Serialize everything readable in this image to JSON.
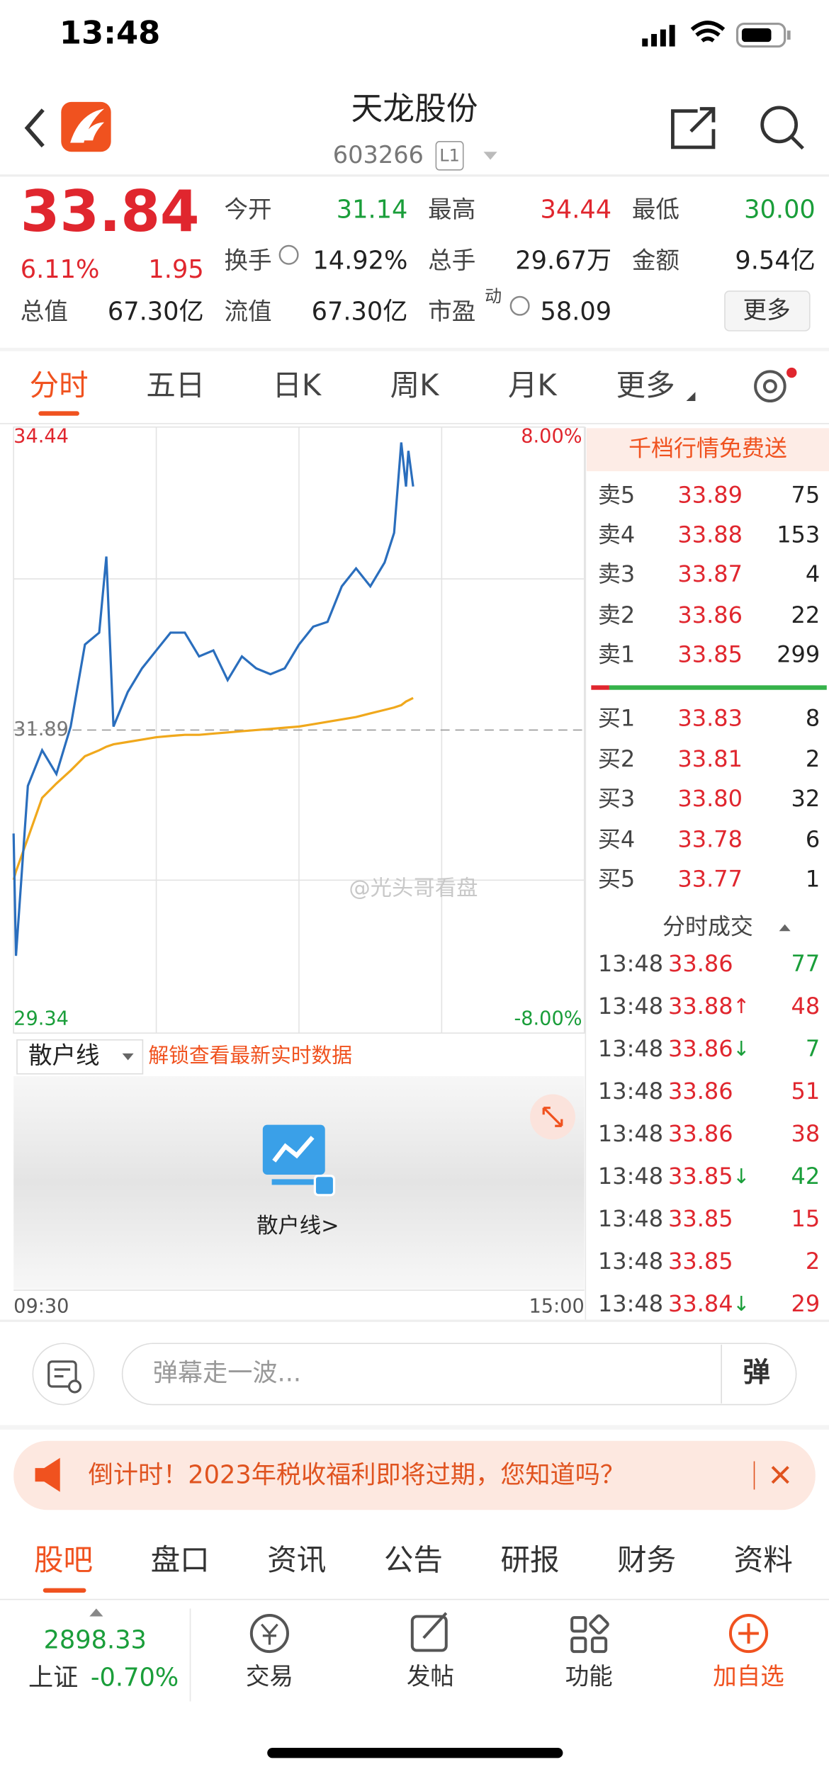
{
  "status": {
    "time": "13:48"
  },
  "header": {
    "title": "天龙股份",
    "code": "603266",
    "level": "L1"
  },
  "quote": {
    "price": "33.84",
    "change_pct": "6.11%",
    "change": "1.95",
    "stats": [
      {
        "label": "今开",
        "value": "31.14",
        "color": "#1a9e3a"
      },
      {
        "label": "最高",
        "value": "34.44",
        "color": "#e0262e"
      },
      {
        "label": "最低",
        "value": "30.00",
        "color": "#1a9e3a"
      },
      {
        "label": "换手",
        "value": "14.92%",
        "color": "#222222"
      },
      {
        "label": "总手",
        "value": "29.67万",
        "color": "#222222"
      },
      {
        "label": "金额",
        "value": "9.54亿",
        "color": "#222222"
      },
      {
        "label": "总值",
        "value": "67.30亿",
        "color": "#222222"
      },
      {
        "label": "流值",
        "value": "67.30亿",
        "color": "#222222"
      },
      {
        "label": "市盈",
        "sup": "动",
        "value": "58.09",
        "color": "#222222"
      }
    ],
    "more": "更多"
  },
  "tabs": [
    "分时",
    "五日",
    "日K",
    "周K",
    "月K",
    "更多"
  ],
  "chart_data": {
    "type": "line",
    "x": [
      0,
      1,
      6,
      12,
      18,
      24,
      30,
      36,
      39,
      42,
      48,
      54,
      60,
      66,
      72,
      78,
      84,
      90,
      96,
      102,
      108,
      114,
      120,
      126,
      132,
      138,
      144,
      150,
      156,
      160,
      163,
      165,
      166,
      168
    ],
    "series": [
      {
        "color": "#2a6ebd",
        "values": [
          31.02,
          29.99,
          31.42,
          31.72,
          31.52,
          31.92,
          32.61,
          32.71,
          33.35,
          31.92,
          32.21,
          32.41,
          32.56,
          32.71,
          32.71,
          32.51,
          32.56,
          32.31,
          32.51,
          32.41,
          32.36,
          32.41,
          32.61,
          32.76,
          32.8,
          33.1,
          33.25,
          33.1,
          33.3,
          33.55,
          34.31,
          33.94,
          34.24,
          33.94
        ]
      },
      {
        "color": "#f0a81c",
        "values": [
          30.63,
          30.7,
          30.98,
          31.32,
          31.44,
          31.55,
          31.67,
          31.72,
          31.75,
          31.77,
          31.79,
          31.81,
          31.83,
          31.84,
          31.85,
          31.85,
          31.86,
          31.87,
          31.88,
          31.89,
          31.9,
          31.91,
          31.92,
          31.94,
          31.96,
          31.98,
          32.0,
          32.03,
          32.06,
          32.08,
          32.1,
          32.13,
          32.14,
          32.16
        ]
      }
    ],
    "xlim": [
      0,
      240
    ],
    "xticks": [
      {
        "value": 0,
        "label": "09:30"
      },
      {
        "value": 240,
        "label": "15:00"
      }
    ],
    "ylim": [
      29.34,
      34.44
    ],
    "yticks": [
      29.34,
      31.89,
      34.44
    ],
    "y2lim": [
      -8,
      8
    ],
    "y2ticks": [
      {
        "value": -8,
        "label": "-8.00%"
      },
      {
        "value": 8,
        "label": "8.00%"
      }
    ]
  },
  "indicator": {
    "name": "散户线",
    "unlock": "解锁查看最新实时数据",
    "panel_label": "散户线>"
  },
  "watermark": "@光头哥看盘",
  "orderbook": {
    "banner": "千档行情免费送",
    "asks": [
      {
        "label": "卖5",
        "price": "33.89",
        "volume": "75"
      },
      {
        "label": "卖4",
        "price": "33.88",
        "volume": "153"
      },
      {
        "label": "卖3",
        "price": "33.87",
        "volume": "4"
      },
      {
        "label": "卖2",
        "price": "33.86",
        "volume": "22"
      },
      {
        "label": "卖1",
        "price": "33.85",
        "volume": "299"
      }
    ],
    "bids": [
      {
        "label": "买1",
        "price": "33.83",
        "volume": "8"
      },
      {
        "label": "买2",
        "price": "33.81",
        "volume": "2"
      },
      {
        "label": "买3",
        "price": "33.80",
        "volume": "32"
      },
      {
        "label": "买4",
        "price": "33.78",
        "volume": "6"
      },
      {
        "label": "买5",
        "price": "33.77",
        "volume": "1"
      }
    ],
    "trades_title": "分时成交",
    "trades": [
      {
        "time": "13:48",
        "price": "33.86",
        "volume": "77",
        "volume_color": "#1a9e3a"
      },
      {
        "time": "13:48",
        "price": "33.88",
        "arrow": "↑",
        "volume": "48",
        "volume_color": "#e0262e"
      },
      {
        "time": "13:48",
        "price": "33.86",
        "arrow": "↓",
        "volume": "7",
        "volume_color": "#1a9e3a"
      },
      {
        "time": "13:48",
        "price": "33.86",
        "volume": "51",
        "volume_color": "#e0262e"
      },
      {
        "time": "13:48",
        "price": "33.86",
        "volume": "38",
        "volume_color": "#e0262e"
      },
      {
        "time": "13:48",
        "price": "33.85",
        "arrow": "↓",
        "volume": "42",
        "volume_color": "#1a9e3a"
      },
      {
        "time": "13:48",
        "price": "33.85",
        "volume": "15",
        "volume_color": "#e0262e"
      },
      {
        "time": "13:48",
        "price": "33.85",
        "volume": "2",
        "volume_color": "#e0262e"
      },
      {
        "time": "13:48",
        "price": "33.84",
        "arrow": "↓",
        "volume": "29",
        "volume_color": "#e0262e"
      }
    ]
  },
  "comment": {
    "placeholder": "弹幕走一波...",
    "button": "弹"
  },
  "notice": {
    "text": "倒计时！2023年税收福利即将过期，您知道吗？"
  },
  "bottom_tabs": [
    "股吧",
    "盘口",
    "资讯",
    "公告",
    "研报",
    "财务",
    "资料"
  ],
  "index": {
    "value": "2898.33",
    "name": "上证",
    "change": "-0.70%"
  },
  "nav": [
    "交易",
    "发帖",
    "功能",
    "加自选"
  ]
}
